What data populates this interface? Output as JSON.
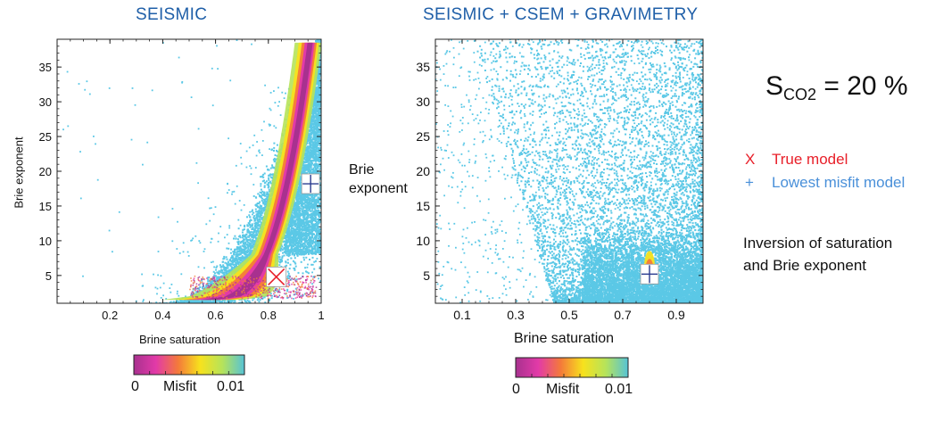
{
  "texts": {
    "sco2_base": "S",
    "sco2_sub": "CO2",
    "sco2_rest": " = 20 %",
    "legend_true_marker": "X",
    "legend_true_label": "True model",
    "legend_lowest_marker": "+",
    "legend_lowest_label": "Lowest misfit model",
    "note_line1": "Inversion of saturation",
    "note_line2": "and Brie exponent"
  },
  "colors": {
    "title": "#1f5fa8",
    "points": "#5bc8e6",
    "true_model": "#e8202a",
    "lowest_misfit": "#4a90d9",
    "colormap": [
      "#a8318f",
      "#e23aa8",
      "#f47a3a",
      "#f7e21d",
      "#b6e35a",
      "#56c3d6"
    ]
  },
  "chart_data": [
    {
      "type": "scatter",
      "title": "SEISMIC",
      "xlabel": "Brine saturation",
      "ylabel": "Brie exponent",
      "xlim": [
        0,
        1.0
      ],
      "ylim": [
        1,
        39
      ],
      "xticks": [
        0.2,
        0.4,
        0.6,
        0.8,
        1
      ],
      "xtick_labels": [
        "0.2",
        "0.4",
        "0.6",
        "0.8",
        "1"
      ],
      "yticks": [
        5,
        10,
        15,
        20,
        25,
        30,
        35
      ],
      "ytick_labels": [
        "5",
        "10",
        "15",
        "20",
        "25",
        "30",
        "35"
      ],
      "true_model": {
        "x": 0.83,
        "y": 4.8
      },
      "lowest_misfit_model": {
        "x": 0.96,
        "y": 18.2
      },
      "colorbar": {
        "label": "Misfit",
        "min_label": "0",
        "max_label": "0.01"
      }
    },
    {
      "type": "scatter",
      "title": "SEISMIC + CSEM + GRAVIMETRY",
      "xlabel": "Brine saturation",
      "ylabel_line1": "Brie",
      "ylabel_line2": "exponent",
      "xlim": [
        0,
        1.0
      ],
      "ylim": [
        1,
        39
      ],
      "xticks": [
        0.1,
        0.3,
        0.5,
        0.7,
        0.9
      ],
      "xtick_labels": [
        "0.1",
        "0.3",
        "0.5",
        "0.7",
        "0.9"
      ],
      "yticks": [
        5,
        10,
        15,
        20,
        25,
        30,
        35
      ],
      "ytick_labels": [
        "5",
        "10",
        "15",
        "20",
        "25",
        "30",
        "35"
      ],
      "lowest_misfit_model": {
        "x": 0.8,
        "y": 5.2
      },
      "colorbar": {
        "label": "Misfit",
        "min_label": "0",
        "max_label": "0.01"
      }
    }
  ]
}
